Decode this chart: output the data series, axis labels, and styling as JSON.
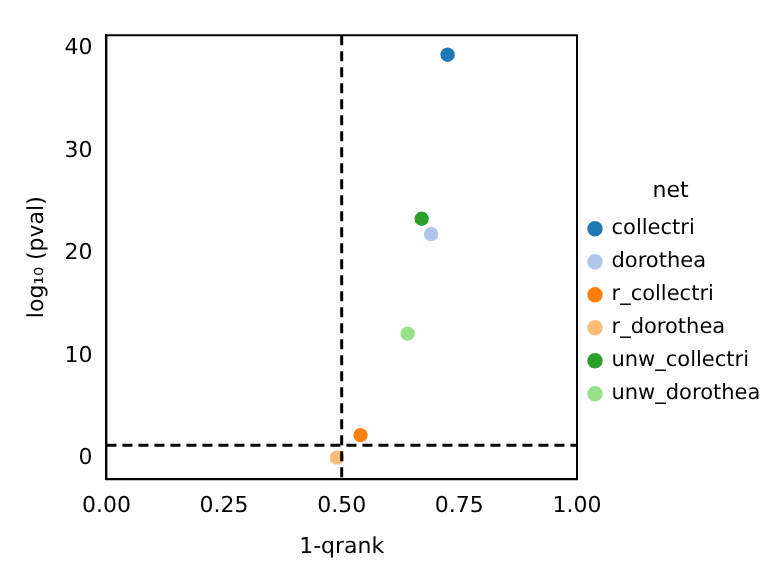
{
  "chart_data": {
    "type": "scatter",
    "xlabel": "1-qrank",
    "ylabel": "log₁₀ (pval)",
    "legend_title": "net",
    "series": [
      {
        "name": "collectri",
        "color": "#1f77b4",
        "x": [
          0.725
        ],
        "values": [
          39.4
        ]
      },
      {
        "name": "dorothea",
        "color": "#aec7e8",
        "x": [
          0.69
        ],
        "values": [
          21.9
        ]
      },
      {
        "name": "r_collectri",
        "color": "#ff7f0e",
        "x": [
          0.54
        ],
        "values": [
          2.3
        ]
      },
      {
        "name": "r_dorothea",
        "color": "#ffbb78",
        "x": [
          0.49
        ],
        "values": [
          0.1
        ]
      },
      {
        "name": "unw_collectri",
        "color": "#2ca02c",
        "x": [
          0.67
        ],
        "values": [
          23.4
        ]
      },
      {
        "name": "unw_dorothea",
        "color": "#98df8a",
        "x": [
          0.64
        ],
        "values": [
          12.2
        ]
      }
    ],
    "xlim": [
      0,
      1
    ],
    "xticks": [
      {
        "value": 0,
        "label": "0.00"
      },
      {
        "value": 0.25,
        "label": "0.25"
      },
      {
        "value": 0.5,
        "label": "0.50"
      },
      {
        "value": 0.75,
        "label": "0.75"
      },
      {
        "value": 1,
        "label": "1.00"
      }
    ],
    "ylim": [
      -2,
      41.3
    ],
    "yticks": [
      0,
      10,
      20,
      30,
      40
    ],
    "ref_lines": [
      {
        "axis": "x",
        "value": 0.5,
        "color": "#000000",
        "line_style": "dashed"
      },
      {
        "axis": "y",
        "value": 1.3,
        "color": "#000000",
        "line_style": "dashed"
      }
    ],
    "grid": false,
    "legend": "right",
    "marker": "circle"
  }
}
